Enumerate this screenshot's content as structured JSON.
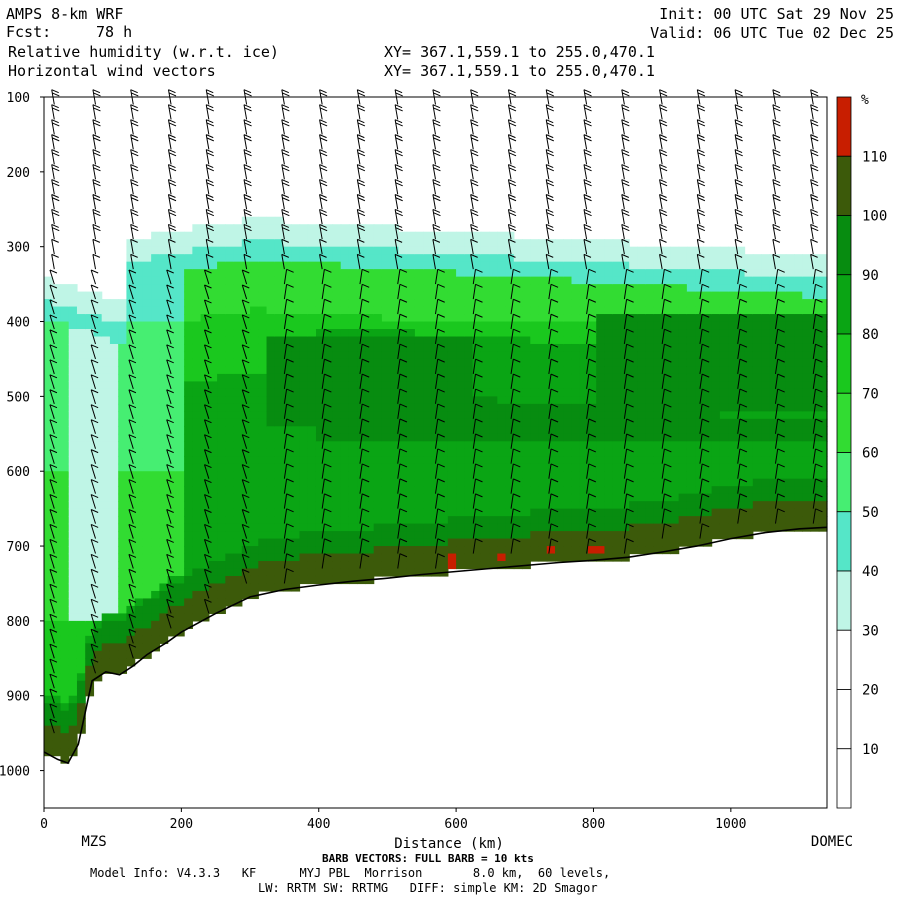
{
  "header": {
    "model": "AMPS 8-km WRF",
    "fcst_label": "Fcst:",
    "fcst_value": "78 h",
    "field1": "Relative humidity (w.r.t. ice)",
    "field2": "Horizontal wind vectors",
    "init": "Init: 00 UTC Sat 29 Nov 25",
    "valid": "Valid: 06 UTC Tue 02 Dec 25",
    "xy1": "XY= 367.1,559.1 to 255.0,470.1",
    "xy2": "XY= 367.1,559.1 to 255.0,470.1"
  },
  "chart_data": {
    "type": "heatmap",
    "title": "Relative humidity (w.r.t. ice)",
    "subtitle": "Horizontal wind vectors",
    "xlabel": "Distance (km)",
    "ylabel": "",
    "xlim": [
      0,
      1140
    ],
    "ylim": [
      1050,
      100
    ],
    "y_scale": "linear (pressure, inverted)",
    "x_ticks": [
      0,
      200,
      400,
      600,
      800,
      1000
    ],
    "y_ticks": [
      100,
      200,
      300,
      400,
      500,
      600,
      700,
      800,
      900,
      1000
    ],
    "x_end_labels": [
      "MZS",
      "DOMEC"
    ],
    "colorbar": {
      "unit": "%",
      "ticks": [
        10,
        20,
        30,
        40,
        50,
        60,
        70,
        80,
        90,
        100,
        110
      ],
      "levels": [
        0,
        10,
        20,
        30,
        40,
        50,
        60,
        70,
        80,
        90,
        100,
        110,
        120
      ],
      "colors": [
        "#ffffff",
        "#ffffff",
        "#ffffff",
        "#bff5e6",
        "#55e6c8",
        "#46ee72",
        "#32dc32",
        "#1ac81e",
        "#0aa514",
        "#078c10",
        "#3c5a0a",
        "#c81e00"
      ]
    },
    "terrain": {
      "x_km": [
        0,
        20,
        35,
        50,
        70,
        90,
        110,
        130,
        150,
        180,
        200,
        250,
        300,
        350,
        400,
        450,
        500,
        550,
        600,
        650,
        700,
        750,
        800,
        850,
        900,
        950,
        1000,
        1050,
        1100,
        1140
      ],
      "p_hpa": [
        975,
        985,
        990,
        965,
        880,
        868,
        872,
        860,
        845,
        828,
        815,
        790,
        768,
        758,
        752,
        747,
        743,
        738,
        734,
        730,
        726,
        722,
        719,
        715,
        708,
        700,
        690,
        682,
        677,
        675
      ]
    },
    "barb_note": "BARB VECTORS: FULL BARB = 10 kts",
    "barb_columns_km": [
      15,
      75,
      130,
      185,
      240,
      295,
      350,
      405,
      460,
      515,
      570,
      625,
      680,
      735,
      790,
      845,
      900,
      955,
      1010,
      1065,
      1120
    ],
    "barb_levels_hpa": [
      110,
      130,
      150,
      170,
      190,
      210,
      230,
      250,
      270,
      290,
      310,
      330,
      350,
      370,
      390,
      410,
      430,
      450,
      470,
      490,
      510,
      530,
      550,
      570,
      590,
      610,
      630,
      650,
      670,
      690,
      710,
      730,
      750,
      770,
      790,
      810,
      830,
      850,
      870,
      890,
      910,
      930,
      950
    ]
  },
  "footer": {
    "model_info": "Model Info: V4.3.3   KF      MYJ PBL  Morrison       8.0 km,  60 levels,",
    "physics": "LW: RRTM SW: RRTMG   DIFF: simple KM: 2D Smagor"
  }
}
